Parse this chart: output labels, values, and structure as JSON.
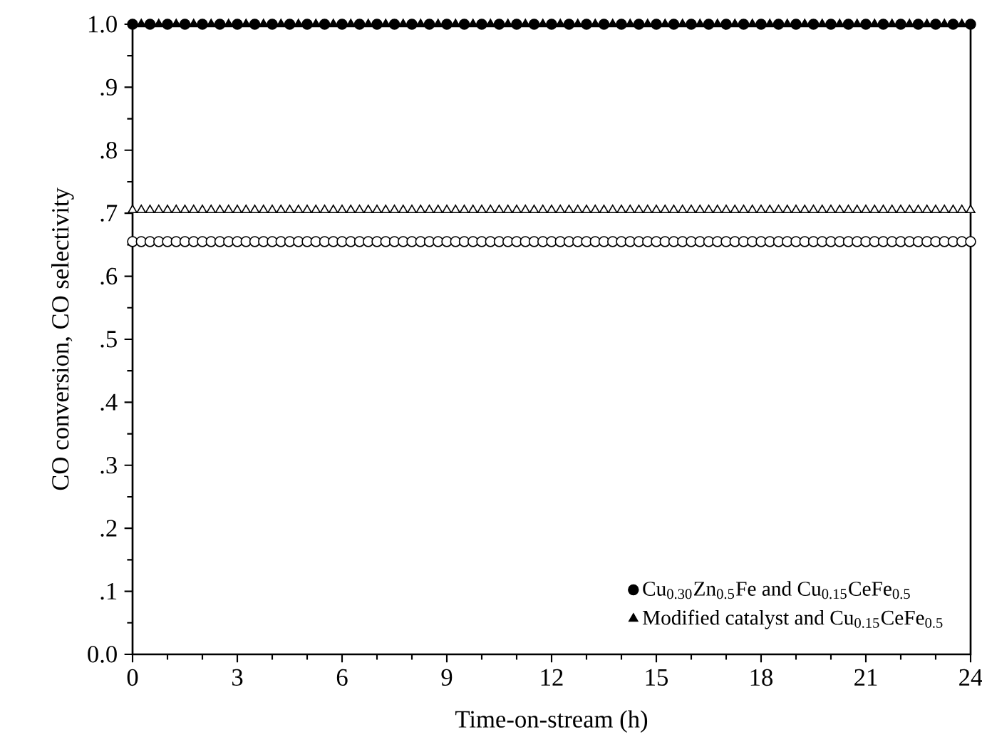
{
  "chart_data": {
    "type": "scatter",
    "xlabel": "Time-on-stream (h)",
    "ylabel": "CO conversion, CO selectivity",
    "xlim": [
      0,
      24
    ],
    "ylim": [
      0,
      1.0
    ],
    "xticks": [
      0,
      3,
      6,
      9,
      12,
      15,
      18,
      21,
      24
    ],
    "yticks": [
      {
        "value": 0,
        "label": "0.0"
      },
      {
        "value": 0.1,
        "label": ".1"
      },
      {
        "value": 0.2,
        "label": ".2"
      },
      {
        "value": 0.3,
        "label": ".3"
      },
      {
        "value": 0.4,
        "label": ".4"
      },
      {
        "value": 0.5,
        "label": ".5"
      },
      {
        "value": 0.6,
        "label": ".6"
      },
      {
        "value": 0.7,
        "label": ".7"
      },
      {
        "value": 0.8,
        "label": ".8"
      },
      {
        "value": 0.9,
        "label": ".9"
      },
      {
        "value": 1.0,
        "label": "1.0"
      }
    ],
    "legend": "bottom right",
    "grid": false,
    "x": [
      0,
      0.25,
      0.5,
      0.75,
      1,
      1.25,
      1.5,
      1.75,
      2,
      2.25,
      2.5,
      2.75,
      3,
      3.25,
      3.5,
      3.75,
      4,
      4.25,
      4.5,
      4.75,
      5,
      5.25,
      5.5,
      5.75,
      6,
      6.25,
      6.5,
      6.75,
      7,
      7.25,
      7.5,
      7.75,
      8,
      8.25,
      8.5,
      8.75,
      9,
      9.25,
      9.5,
      9.75,
      10,
      10.25,
      10.5,
      10.75,
      11,
      11.25,
      11.5,
      11.75,
      12,
      12.25,
      12.5,
      12.75,
      13,
      13.25,
      13.5,
      13.75,
      14,
      14.25,
      14.5,
      14.75,
      15,
      15.25,
      15.5,
      15.75,
      16,
      16.25,
      16.5,
      16.75,
      17,
      17.25,
      17.5,
      17.75,
      18,
      18.25,
      18.5,
      18.75,
      19,
      19.25,
      19.5,
      19.75,
      20,
      20.25,
      20.5,
      20.75,
      21,
      21.25,
      21.5,
      21.75,
      22,
      22.25,
      22.5,
      22.75,
      23,
      23.25,
      23.5,
      23.75,
      24
    ],
    "series": [
      {
        "name": "Cu$_{0.30}$Zn$_{0.5}$Fe and Cu$_{0.15}$CeFe$_{0.5}$",
        "color": "#000000",
        "marker": "circle",
        "x": [
          0,
          0.5,
          1,
          1.5,
          2,
          2.5,
          3,
          3.5,
          4,
          4.5,
          5,
          5.5,
          6,
          6.5,
          7,
          7.5,
          8,
          8.5,
          9,
          9.5,
          10,
          10.5,
          11,
          11.5,
          12,
          12.5,
          13,
          13.5,
          14,
          14.5,
          15,
          15.5,
          16,
          16.5,
          17,
          17.5,
          18,
          18.5,
          19,
          19.5,
          20,
          20.5,
          21,
          21.5,
          22,
          22.5,
          23,
          23.5,
          24
        ],
        "values": [
          1,
          1,
          1,
          1,
          1,
          1,
          1,
          1,
          1,
          1,
          1,
          1,
          1,
          1,
          1,
          1,
          1,
          1,
          1,
          1,
          1,
          1,
          1,
          1,
          1,
          1,
          1,
          1,
          1,
          1,
          1,
          1,
          1,
          1,
          1,
          1,
          1,
          1,
          1,
          1,
          1,
          1,
          1,
          1,
          1,
          1,
          1,
          1,
          1
        ]
      },
      {
        "name": "Modified catalyst and Cu$_{0.15}$CeFe$_{0.5}$",
        "color": "#000000",
        "marker": "triangle",
        "x": [
          0.25,
          0.75,
          1.25,
          1.75,
          2.25,
          2.75,
          3.25,
          3.75,
          4.25,
          4.75,
          5.25,
          5.75,
          6.25,
          6.75,
          7.25,
          7.75,
          8.25,
          8.75,
          9.25,
          9.75,
          10.25,
          10.75,
          11.25,
          11.75,
          12.25,
          12.75,
          13.25,
          13.75,
          14.25,
          14.75,
          15.25,
          15.75,
          16.25,
          16.75,
          17.25,
          17.75,
          18.25,
          18.75,
          19.25,
          19.75,
          20.25,
          20.75,
          21.25,
          21.75,
          22.25,
          22.75,
          23.25,
          23.75
        ],
        "values": [
          1,
          1,
          1,
          1,
          1,
          1,
          1,
          1,
          1,
          1,
          1,
          1,
          1,
          1,
          1,
          1,
          1,
          1,
          1,
          1,
          1,
          1,
          1,
          1,
          1,
          1,
          1,
          1,
          1,
          1,
          1,
          1,
          1,
          1,
          1,
          1,
          1,
          1,
          1,
          1,
          1,
          1,
          1,
          1,
          1,
          1,
          1,
          1
        ]
      },
      {
        "color": "#ffffff",
        "marker": "triangle",
        "values": [
          0.705,
          0.705,
          0.705,
          0.705,
          0.705,
          0.705,
          0.705,
          0.705,
          0.705,
          0.705,
          0.705,
          0.705,
          0.705,
          0.705,
          0.705,
          0.705,
          0.705,
          0.705,
          0.705,
          0.705,
          0.705,
          0.705,
          0.705,
          0.705,
          0.705,
          0.705,
          0.705,
          0.705,
          0.705,
          0.705,
          0.705,
          0.705,
          0.705,
          0.705,
          0.705,
          0.705,
          0.705,
          0.705,
          0.705,
          0.705,
          0.705,
          0.705,
          0.705,
          0.705,
          0.705,
          0.705,
          0.705,
          0.705,
          0.705,
          0.705,
          0.705,
          0.705,
          0.705,
          0.705,
          0.705,
          0.705,
          0.705,
          0.705,
          0.705,
          0.705,
          0.705,
          0.705,
          0.705,
          0.705,
          0.705,
          0.705,
          0.705,
          0.705,
          0.705,
          0.705,
          0.705,
          0.705,
          0.705,
          0.705,
          0.705,
          0.705,
          0.705,
          0.705,
          0.705,
          0.705,
          0.705,
          0.705,
          0.705,
          0.705,
          0.705,
          0.705,
          0.705,
          0.705,
          0.705,
          0.705,
          0.705,
          0.705,
          0.705,
          0.705,
          0.705,
          0.705,
          0.705
        ]
      },
      {
        "color": "#ffffff",
        "marker": "circle",
        "values": [
          0.655,
          0.655,
          0.655,
          0.655,
          0.655,
          0.655,
          0.655,
          0.655,
          0.655,
          0.655,
          0.655,
          0.655,
          0.655,
          0.655,
          0.655,
          0.655,
          0.655,
          0.655,
          0.655,
          0.655,
          0.655,
          0.655,
          0.655,
          0.655,
          0.655,
          0.655,
          0.655,
          0.655,
          0.655,
          0.655,
          0.655,
          0.655,
          0.655,
          0.655,
          0.655,
          0.655,
          0.655,
          0.655,
          0.655,
          0.655,
          0.655,
          0.655,
          0.655,
          0.655,
          0.655,
          0.655,
          0.655,
          0.655,
          0.655,
          0.655,
          0.655,
          0.655,
          0.655,
          0.655,
          0.655,
          0.655,
          0.655,
          0.655,
          0.655,
          0.655,
          0.655,
          0.655,
          0.655,
          0.655,
          0.655,
          0.655,
          0.655,
          0.655,
          0.655,
          0.655,
          0.655,
          0.655,
          0.655,
          0.655,
          0.655,
          0.655,
          0.655,
          0.655,
          0.655,
          0.655,
          0.655,
          0.655,
          0.655,
          0.655,
          0.655,
          0.655,
          0.655,
          0.655,
          0.655,
          0.655,
          0.655,
          0.655,
          0.655,
          0.655,
          0.655,
          0.655,
          0.655
        ]
      }
    ]
  }
}
